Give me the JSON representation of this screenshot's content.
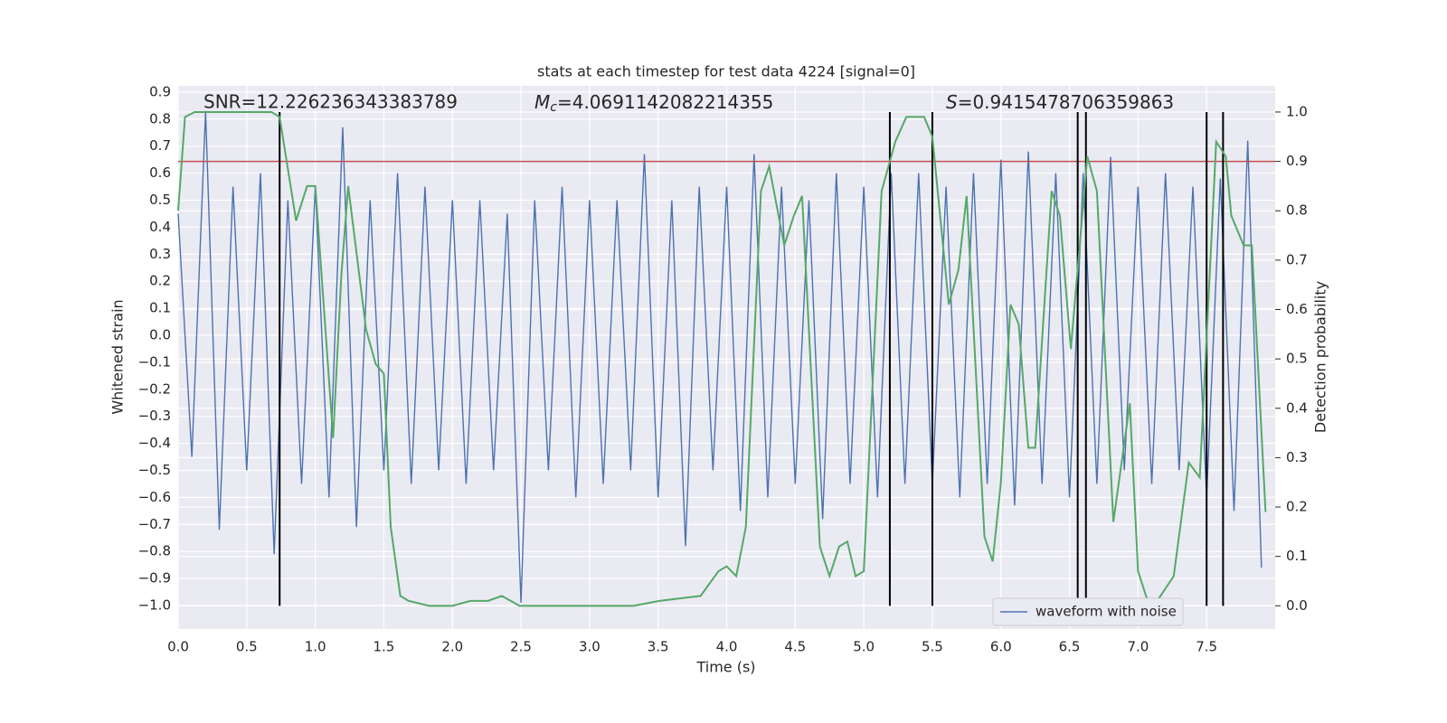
{
  "chart_data": {
    "type": "line",
    "title": "stats at each timestep for test data 4224 [signal=0]",
    "xlabel": "Time (s)",
    "ylabel": "Whitened strain",
    "y2label": "Detection probability",
    "annotations": {
      "snr": "SNR=12.226236343383789",
      "mc": {
        "symbol": "M",
        "subscript": "c",
        "text": "=4.0691142082214355"
      },
      "s": {
        "symbol": "S",
        "text": "=0.9415478706359863"
      }
    },
    "xlim": [
      0,
      8
    ],
    "ylim": [
      -1.087,
      0.923
    ],
    "y2lim": [
      -0.047,
      1.053
    ],
    "xticks": [
      {
        "value": 0,
        "label": "0.0"
      },
      {
        "value": 0.5,
        "label": "0.5"
      },
      {
        "value": 1,
        "label": "1.0"
      },
      {
        "value": 1.5,
        "label": "1.5"
      },
      {
        "value": 2,
        "label": "2.0"
      },
      {
        "value": 2.5,
        "label": "2.5"
      },
      {
        "value": 3,
        "label": "3.0"
      },
      {
        "value": 3.5,
        "label": "3.5"
      },
      {
        "value": 4,
        "label": "4.0"
      },
      {
        "value": 4.5,
        "label": "4.5"
      },
      {
        "value": 5,
        "label": "5.0"
      },
      {
        "value": 5.5,
        "label": "5.5"
      },
      {
        "value": 6,
        "label": "6.0"
      },
      {
        "value": 6.5,
        "label": "6.5"
      },
      {
        "value": 7,
        "label": "7.0"
      },
      {
        "value": 7.5,
        "label": "7.5"
      }
    ],
    "yticks": [
      {
        "value": 0.9,
        "label": "0.9"
      },
      {
        "value": 0.8,
        "label": "0.8"
      },
      {
        "value": 0.7,
        "label": "0.7"
      },
      {
        "value": 0.6,
        "label": "0.6"
      },
      {
        "value": 0.5,
        "label": "0.5"
      },
      {
        "value": 0.4,
        "label": "0.4"
      },
      {
        "value": 0.3,
        "label": "0.3"
      },
      {
        "value": 0.2,
        "label": "0.2"
      },
      {
        "value": 0.1,
        "label": "0.1"
      },
      {
        "value": 0,
        "label": "0.0"
      },
      {
        "value": -0.1,
        "label": "−0.1"
      },
      {
        "value": -0.2,
        "label": "−0.2"
      },
      {
        "value": -0.3,
        "label": "−0.3"
      },
      {
        "value": -0.4,
        "label": "−0.4"
      },
      {
        "value": -0.5,
        "label": "−0.5"
      },
      {
        "value": -0.6,
        "label": "−0.6"
      },
      {
        "value": -0.7,
        "label": "−0.7"
      },
      {
        "value": -0.8,
        "label": "−0.8"
      },
      {
        "value": -0.9,
        "label": "−0.9"
      },
      {
        "value": -1,
        "label": "−1.0"
      }
    ],
    "y2ticks": [
      {
        "value": 0,
        "label": "0.0"
      },
      {
        "value": 0.1,
        "label": "0.1"
      },
      {
        "value": 0.2,
        "label": "0.2"
      },
      {
        "value": 0.3,
        "label": "0.3"
      },
      {
        "value": 0.4,
        "label": "0.4"
      },
      {
        "value": 0.5,
        "label": "0.5"
      },
      {
        "value": 0.6,
        "label": "0.6"
      },
      {
        "value": 0.7,
        "label": "0.7"
      },
      {
        "value": 0.8,
        "label": "0.8"
      },
      {
        "value": 0.9,
        "label": "0.9"
      },
      {
        "value": 1,
        "label": "1.0"
      }
    ],
    "grid": true,
    "legend": "lower right",
    "series": [
      {
        "name": "waveform with noise",
        "color": "#4c72b0",
        "axis": "y",
        "x": [
          0.0,
          0.1,
          0.2,
          0.3,
          0.4,
          0.5,
          0.6,
          0.7,
          0.8,
          0.9,
          1.0,
          1.1,
          1.2,
          1.3,
          1.4,
          1.5,
          1.6,
          1.7,
          1.8,
          1.9,
          2.0,
          2.1,
          2.2,
          2.3,
          2.4,
          2.5,
          2.6,
          2.7,
          2.8,
          2.9,
          3.0,
          3.1,
          3.2,
          3.3,
          3.4,
          3.5,
          3.6,
          3.7,
          3.8,
          3.9,
          4.0,
          4.1,
          4.2,
          4.3,
          4.4,
          4.5,
          4.6,
          4.7,
          4.8,
          4.9,
          5.0,
          5.1,
          5.2,
          5.3,
          5.4,
          5.5,
          5.6,
          5.7,
          5.8,
          5.9,
          6.0,
          6.1,
          6.2,
          6.3,
          6.4,
          6.5,
          6.6,
          6.7,
          6.8,
          6.9,
          7.0,
          7.1,
          7.2,
          7.3,
          7.4,
          7.5,
          7.6,
          7.7,
          7.8,
          7.9
        ],
        "values": [
          0.45,
          -0.45,
          0.83,
          -0.72,
          0.55,
          -0.5,
          0.6,
          -0.81,
          0.5,
          -0.55,
          0.55,
          -0.6,
          0.77,
          -0.71,
          0.5,
          -0.5,
          0.6,
          -0.55,
          0.55,
          -0.5,
          0.5,
          -0.55,
          0.5,
          -0.5,
          0.45,
          -0.99,
          0.5,
          -0.5,
          0.55,
          -0.6,
          0.5,
          -0.55,
          0.5,
          -0.5,
          0.67,
          -0.6,
          0.5,
          -0.78,
          0.55,
          -0.5,
          0.55,
          -0.65,
          0.67,
          -0.6,
          0.55,
          -0.55,
          0.5,
          -0.68,
          0.6,
          -0.55,
          0.55,
          -0.6,
          0.6,
          -0.55,
          0.6,
          -0.55,
          0.55,
          -0.6,
          0.6,
          -0.55,
          0.65,
          -0.63,
          0.68,
          -0.55,
          0.6,
          -0.6,
          0.6,
          -0.55,
          0.66,
          -0.5,
          0.55,
          -0.55,
          0.6,
          -0.5,
          0.55,
          -0.6,
          0.58,
          -0.65,
          0.72,
          -0.86
        ]
      },
      {
        "color": "#55a868",
        "axis": "y2",
        "x": [
          0,
          0.05,
          0.12,
          0.68,
          0.74,
          0.86,
          0.94,
          1.0,
          1.13,
          1.19,
          1.24,
          1.37,
          1.44,
          1.5,
          1.55,
          1.62,
          1.68,
          1.83,
          2.0,
          2.13,
          2.26,
          2.36,
          2.49,
          3.32,
          3.51,
          3.81,
          3.94,
          4.0,
          4.07,
          4.14,
          4.25,
          4.31,
          4.42,
          4.49,
          4.55,
          4.68,
          4.75,
          4.82,
          4.88,
          4.94,
          5.0,
          5.13,
          5.23,
          5.31,
          5.37,
          5.44,
          5.5,
          5.62,
          5.69,
          5.75,
          5.88,
          5.94,
          6.0,
          6.07,
          6.13,
          6.2,
          6.25,
          6.37,
          6.43,
          6.51,
          6.63,
          6.7,
          6.82,
          6.94,
          7.0,
          7.07,
          7.14,
          7.26,
          7.37,
          7.45,
          7.57,
          7.64,
          7.68,
          7.77,
          7.83,
          7.93
        ],
        "values": [
          0.8,
          0.99,
          1.0,
          1.0,
          0.99,
          0.78,
          0.85,
          0.85,
          0.34,
          0.67,
          0.85,
          0.56,
          0.49,
          0.47,
          0.16,
          0.02,
          0.01,
          0.0,
          0.0,
          0.01,
          0.01,
          0.02,
          0.0,
          0.0,
          0.01,
          0.02,
          0.07,
          0.08,
          0.06,
          0.16,
          0.84,
          0.89,
          0.73,
          0.79,
          0.83,
          0.12,
          0.06,
          0.12,
          0.13,
          0.06,
          0.07,
          0.84,
          0.94,
          0.99,
          0.99,
          0.99,
          0.95,
          0.61,
          0.68,
          0.83,
          0.14,
          0.09,
          0.25,
          0.61,
          0.57,
          0.32,
          0.32,
          0.84,
          0.79,
          0.52,
          0.91,
          0.84,
          0.17,
          0.41,
          0.07,
          0.01,
          0.01,
          0.06,
          0.29,
          0.26,
          0.94,
          0.91,
          0.79,
          0.73,
          0.73,
          0.19
        ]
      }
    ],
    "threshold": {
      "y2": 0.9,
      "color": "#c44e52"
    },
    "vlines": {
      "x": [
        0.74,
        5.19,
        5.5,
        6.56,
        6.62,
        7.5,
        7.62
      ],
      "y2": [
        0,
        1
      ],
      "color": "#000000"
    }
  }
}
